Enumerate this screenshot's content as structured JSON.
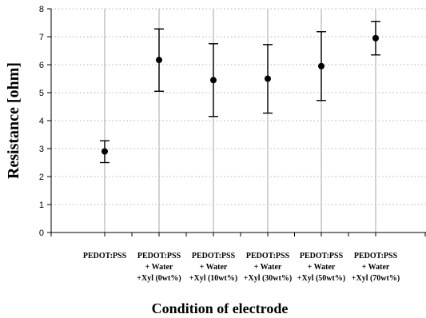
{
  "chart_data": {
    "type": "scatter",
    "title": "",
    "xlabel": "Condition of electrode",
    "ylabel": "Resistance [ohm]",
    "ylim": [
      0,
      8
    ],
    "yticks": [
      "0",
      "1",
      "2",
      "3",
      "4",
      "5",
      "6",
      "7",
      "8"
    ],
    "grid": {
      "vertical": "solid gray lines at categories",
      "horizontal": "dotted gray lines at y ticks"
    },
    "categories": [
      [
        "PEDOT:PSS"
      ],
      [
        "PEDOT:PSS",
        "+ Water",
        "+Xyl (0wt%)"
      ],
      [
        "PEDOT:PSS",
        "+ Water",
        "+Xyl (10wt%)"
      ],
      [
        "PEDOT:PSS",
        "+ Water",
        "+Xyl (30wt%)"
      ],
      [
        "PEDOT:PSS",
        "+ Water",
        "+Xyl (50wt%)"
      ],
      [
        "PEDOT:PSS",
        "+ Water",
        "+Xyl (70wt%)"
      ]
    ],
    "series": [
      {
        "values": [
          2.9,
          6.17,
          5.45,
          5.5,
          5.95,
          6.95
        ],
        "error_low": [
          2.5,
          5.05,
          4.15,
          4.27,
          4.72,
          6.35
        ],
        "error_high": [
          3.28,
          7.28,
          6.75,
          6.72,
          7.18,
          7.55
        ],
        "color": "#000000",
        "marker": "circle"
      }
    ]
  }
}
